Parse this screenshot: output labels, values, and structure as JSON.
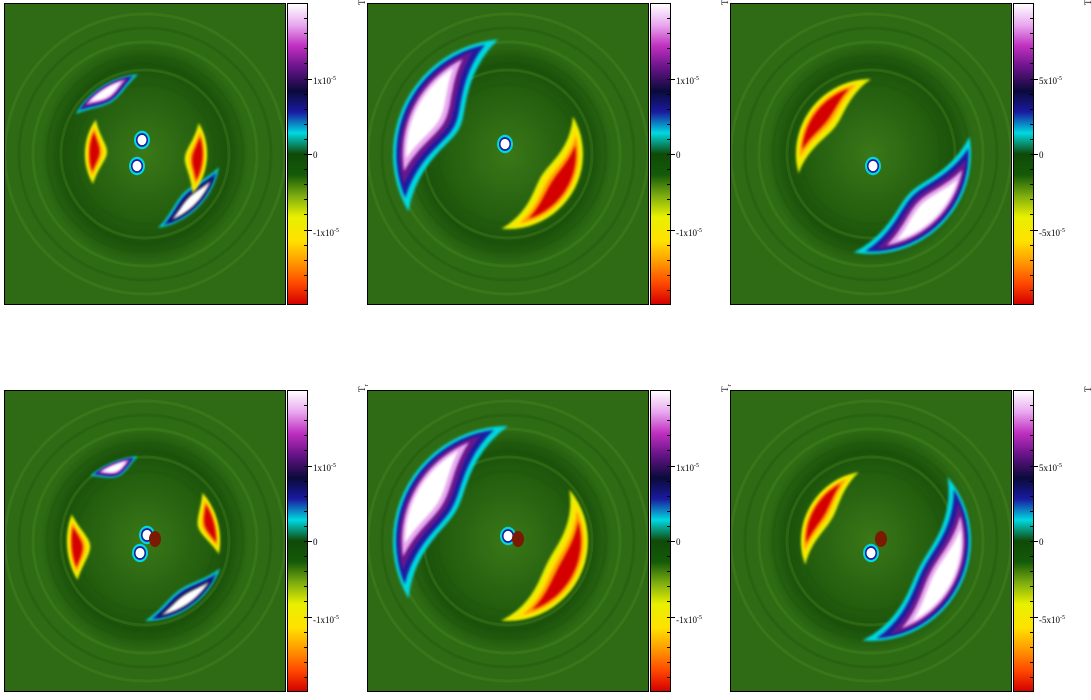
{
  "chart_data": [
    {
      "type": "heatmap",
      "colorbar_label": "T",
      "colorbar_label_sub": "r",
      "ticks": [
        "1x10",
        "0",
        "-1x10"
      ],
      "tick_exp": [
        "-5",
        "",
        "-5"
      ],
      "tick_values": [
        1e-05,
        0,
        -1e-05
      ],
      "range": [
        -2e-05,
        2e-05
      ]
    },
    {
      "type": "heatmap",
      "colorbar_label": "T",
      "colorbar_label_sub": "r",
      "ticks": [
        "1x10",
        "0",
        "-1x10"
      ],
      "tick_exp": [
        "-5",
        "",
        "-5"
      ],
      "tick_values": [
        1e-05,
        0,
        -1e-05
      ],
      "range": [
        -2e-05,
        2e-05
      ]
    },
    {
      "type": "heatmap",
      "colorbar_label": "T",
      "colorbar_label_sub": "r",
      "ticks": [
        "5x10",
        "0",
        "-5x10"
      ],
      "tick_exp": [
        "-5",
        "",
        "-5"
      ],
      "tick_values": [
        5e-05,
        0,
        -5e-05
      ],
      "range": [
        -0.0001,
        0.0001
      ]
    },
    {
      "type": "heatmap",
      "colorbar_label": "T",
      "colorbar_label_sub": "r",
      "ticks": [
        "1x10",
        "0",
        "-1x10"
      ],
      "tick_exp": [
        "-5",
        "",
        "-5"
      ],
      "tick_values": [
        1e-05,
        0,
        -1e-05
      ],
      "range": [
        -2e-05,
        2e-05
      ]
    },
    {
      "type": "heatmap",
      "colorbar_label": "T",
      "colorbar_label_sub": "r",
      "ticks": [
        "1x10",
        "0",
        "-1x10"
      ],
      "tick_exp": [
        "-5",
        "",
        "-5"
      ],
      "tick_values": [
        1e-05,
        0,
        -1e-05
      ],
      "range": [
        -2e-05,
        2e-05
      ]
    },
    {
      "type": "heatmap",
      "colorbar_label": "T",
      "colorbar_label_sub": "r",
      "ticks": [
        "5x10",
        "0",
        "-5x10"
      ],
      "tick_exp": [
        "-5",
        "",
        "-5"
      ],
      "tick_values": [
        5e-05,
        0,
        -5e-05
      ],
      "range": [
        -0.0001,
        0.0001
      ]
    }
  ],
  "colors": {
    "background_field": "#2f6a14",
    "colormap": [
      "#d40000",
      "#ff4a00",
      "#ff9a00",
      "#ffe100",
      "#e8f000",
      "#7dad10",
      "#145a08",
      "#0f4a08",
      "#00d8e0",
      "#1a1aa0",
      "#0a0a3a",
      "#6a148a",
      "#c030c0",
      "#e8a8ef",
      "#ffffff"
    ]
  }
}
